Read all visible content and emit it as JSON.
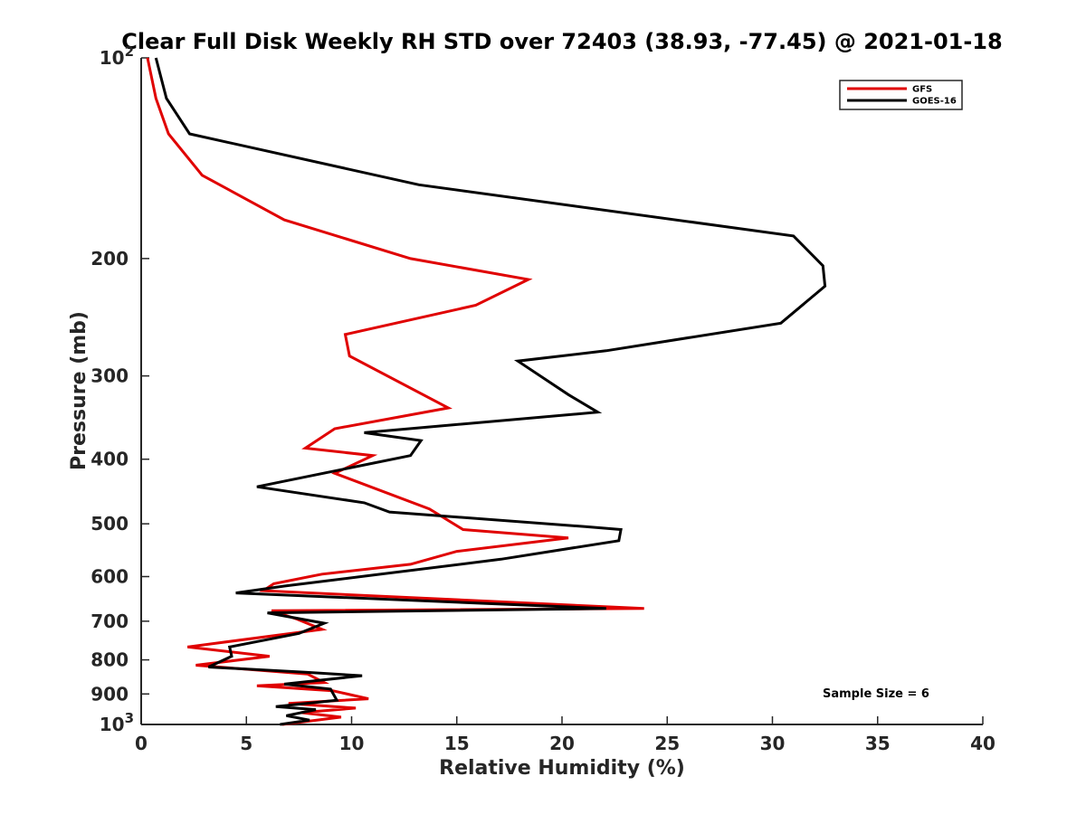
{
  "chart_data": {
    "type": "line",
    "title": "Clear Full Disk Weekly RH STD over 72403 (38.93, -77.45) @ 2021-01-18",
    "xlabel": "Relative Humidity (%)",
    "ylabel": "Pressure (mb)",
    "xlim": [
      0,
      40
    ],
    "ylim": [
      100,
      1000
    ],
    "y_scale": "log",
    "y_reversed": true,
    "x_ticks": [
      "0",
      "5",
      "10",
      "15",
      "20",
      "25",
      "30",
      "35",
      "40"
    ],
    "x_tick_values": [
      0,
      5,
      10,
      15,
      20,
      25,
      30,
      35,
      40
    ],
    "y_ticks": [
      {
        "value": 100,
        "base": "10",
        "exp": "2"
      },
      {
        "value": 200,
        "label": "200"
      },
      {
        "value": 300,
        "label": "300"
      },
      {
        "value": 400,
        "label": "400"
      },
      {
        "value": 500,
        "label": "500"
      },
      {
        "value": 600,
        "label": "600"
      },
      {
        "value": 700,
        "label": "700"
      },
      {
        "value": 800,
        "label": "800"
      },
      {
        "value": 900,
        "label": "900"
      },
      {
        "value": 1000,
        "base": "10",
        "exp": "3"
      }
    ],
    "legend_position": "top-right",
    "annotation": "Sample Size = 6",
    "series": [
      {
        "name": "GFS",
        "color": "#e00000",
        "points": [
          [
            0.3,
            100
          ],
          [
            0.7,
            115
          ],
          [
            1.3,
            130
          ],
          [
            2.9,
            150
          ],
          [
            6.8,
            175
          ],
          [
            12.8,
            200
          ],
          [
            18.4,
            215
          ],
          [
            15.9,
            235
          ],
          [
            9.7,
            260
          ],
          [
            9.9,
            280
          ],
          [
            14.6,
            335
          ],
          [
            9.2,
            360
          ],
          [
            7.8,
            385
          ],
          [
            11.0,
            395
          ],
          [
            9.2,
            420
          ],
          [
            13.7,
            475
          ],
          [
            15.3,
            510
          ],
          [
            20.3,
            525
          ],
          [
            15.0,
            550
          ],
          [
            12.8,
            575
          ],
          [
            8.6,
            595
          ],
          [
            6.3,
            615
          ],
          [
            5.8,
            630
          ],
          [
            23.9,
            670
          ],
          [
            6.2,
            675
          ],
          [
            7.4,
            695
          ],
          [
            8.6,
            720
          ],
          [
            2.2,
            765
          ],
          [
            6.1,
            790
          ],
          [
            2.6,
            815
          ],
          [
            7.9,
            840
          ],
          [
            8.7,
            865
          ],
          [
            5.5,
            875
          ],
          [
            9.1,
            890
          ],
          [
            10.8,
            915
          ],
          [
            7.0,
            930
          ],
          [
            10.2,
            945
          ],
          [
            7.6,
            960
          ],
          [
            9.5,
            975
          ],
          [
            6.7,
            1000
          ]
        ]
      },
      {
        "name": "GOES-16",
        "color": "#000000",
        "points": [
          [
            0.7,
            100
          ],
          [
            1.2,
            115
          ],
          [
            2.3,
            130
          ],
          [
            13.2,
            155
          ],
          [
            31.0,
            185
          ],
          [
            32.4,
            205
          ],
          [
            32.5,
            220
          ],
          [
            30.4,
            250
          ],
          [
            22.1,
            275
          ],
          [
            17.9,
            285
          ],
          [
            20.3,
            320
          ],
          [
            21.7,
            340
          ],
          [
            10.6,
            365
          ],
          [
            13.3,
            375
          ],
          [
            12.8,
            395
          ],
          [
            5.5,
            440
          ],
          [
            10.6,
            465
          ],
          [
            11.8,
            480
          ],
          [
            21.1,
            505
          ],
          [
            22.8,
            510
          ],
          [
            22.7,
            530
          ],
          [
            17.1,
            565
          ],
          [
            6.8,
            620
          ],
          [
            4.5,
            635
          ],
          [
            22.1,
            670
          ],
          [
            6.0,
            680
          ],
          [
            8.7,
            705
          ],
          [
            7.5,
            730
          ],
          [
            4.2,
            765
          ],
          [
            4.3,
            790
          ],
          [
            3.2,
            820
          ],
          [
            7.8,
            835
          ],
          [
            10.5,
            845
          ],
          [
            6.8,
            870
          ],
          [
            9.0,
            885
          ],
          [
            9.3,
            920
          ],
          [
            6.4,
            940
          ],
          [
            8.3,
            950
          ],
          [
            6.9,
            970
          ],
          [
            8.0,
            985
          ],
          [
            6.6,
            1000
          ]
        ]
      }
    ]
  }
}
